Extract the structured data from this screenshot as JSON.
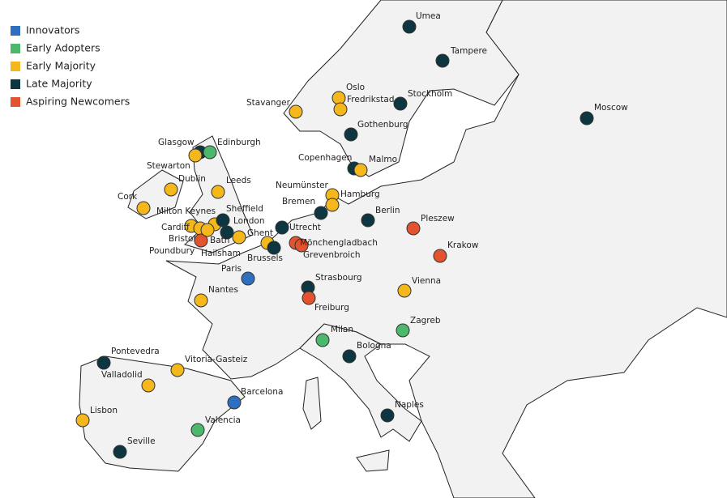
{
  "legend": [
    {
      "name": "Innovators",
      "color": "#2e6fbf"
    },
    {
      "name": "Early Adopters",
      "color": "#4cb86b"
    },
    {
      "name": "Early Majority",
      "color": "#f5b81c"
    },
    {
      "name": "Late Majority",
      "color": "#0d3640"
    },
    {
      "name": "Aspiring Newcomers",
      "color": "#e4532f"
    }
  ],
  "cities": [
    {
      "label": "Umea",
      "group": 3
    },
    {
      "label": "Tampere",
      "group": 3
    },
    {
      "label": "Oslo",
      "group": 2
    },
    {
      "label": "Fredrikstad",
      "group": 2
    },
    {
      "label": "Stockholm",
      "group": 3
    },
    {
      "label": "Stavanger",
      "group": 2
    },
    {
      "label": "Moscow",
      "group": 3
    },
    {
      "label": "Gothenburg",
      "group": 3
    },
    {
      "label": "Glasgow",
      "group": 3
    },
    {
      "label": "Edinburgh",
      "group": 1
    },
    {
      "label": "Stewarton",
      "group": 2
    },
    {
      "label": "Copenhagen",
      "group": 3
    },
    {
      "label": "Malmo",
      "group": 2
    },
    {
      "label": "Dublin",
      "group": 2
    },
    {
      "label": "Leeds",
      "group": 2
    },
    {
      "label": "Neumünster",
      "group": 2
    },
    {
      "label": "Hamburg",
      "group": 2
    },
    {
      "label": "Bremen",
      "group": 3
    },
    {
      "label": "Cork",
      "group": 2
    },
    {
      "label": "Berlin",
      "group": 3
    },
    {
      "label": "Milton Keynes",
      "group": 2
    },
    {
      "label": "Sheffield",
      "group": 3
    },
    {
      "label": "Pleszew",
      "group": 4
    },
    {
      "label": "London",
      "group": 3
    },
    {
      "label": "Cardiff",
      "group": 2
    },
    {
      "label": "Utrecht",
      "group": 3
    },
    {
      "label": "Ghent",
      "group": 2
    },
    {
      "label": "Bristol",
      "group": 2
    },
    {
      "label": "Bath",
      "group": 4
    },
    {
      "label": "Mönchengladbach",
      "group": 4
    },
    {
      "label": "Krakow",
      "group": 4
    },
    {
      "label": "Poundbury",
      "group": 2
    },
    {
      "label": "Hailsham",
      "group": 2
    },
    {
      "label": "Brussels",
      "group": 3
    },
    {
      "label": "Grevenbroich",
      "group": 4
    },
    {
      "label": "Paris",
      "group": 0
    },
    {
      "label": "Strasbourg",
      "group": 3
    },
    {
      "label": "Vienna",
      "group": 2
    },
    {
      "label": "Nantes",
      "group": 2
    },
    {
      "label": "Freiburg",
      "group": 4
    },
    {
      "label": "Zagreb",
      "group": 1
    },
    {
      "label": "Milan",
      "group": 1
    },
    {
      "label": "Bologna",
      "group": 3
    },
    {
      "label": "Pontevedra",
      "group": 3
    },
    {
      "label": "Vitoria-Gasteiz",
      "group": 2
    },
    {
      "label": "Valladolid",
      "group": 2
    },
    {
      "label": "Barcelona",
      "group": 0
    },
    {
      "label": "Naples",
      "group": 3
    },
    {
      "label": "Lisbon",
      "group": 2
    },
    {
      "label": "Valencia",
      "group": 1
    },
    {
      "label": "Seville",
      "group": 3
    }
  ]
}
